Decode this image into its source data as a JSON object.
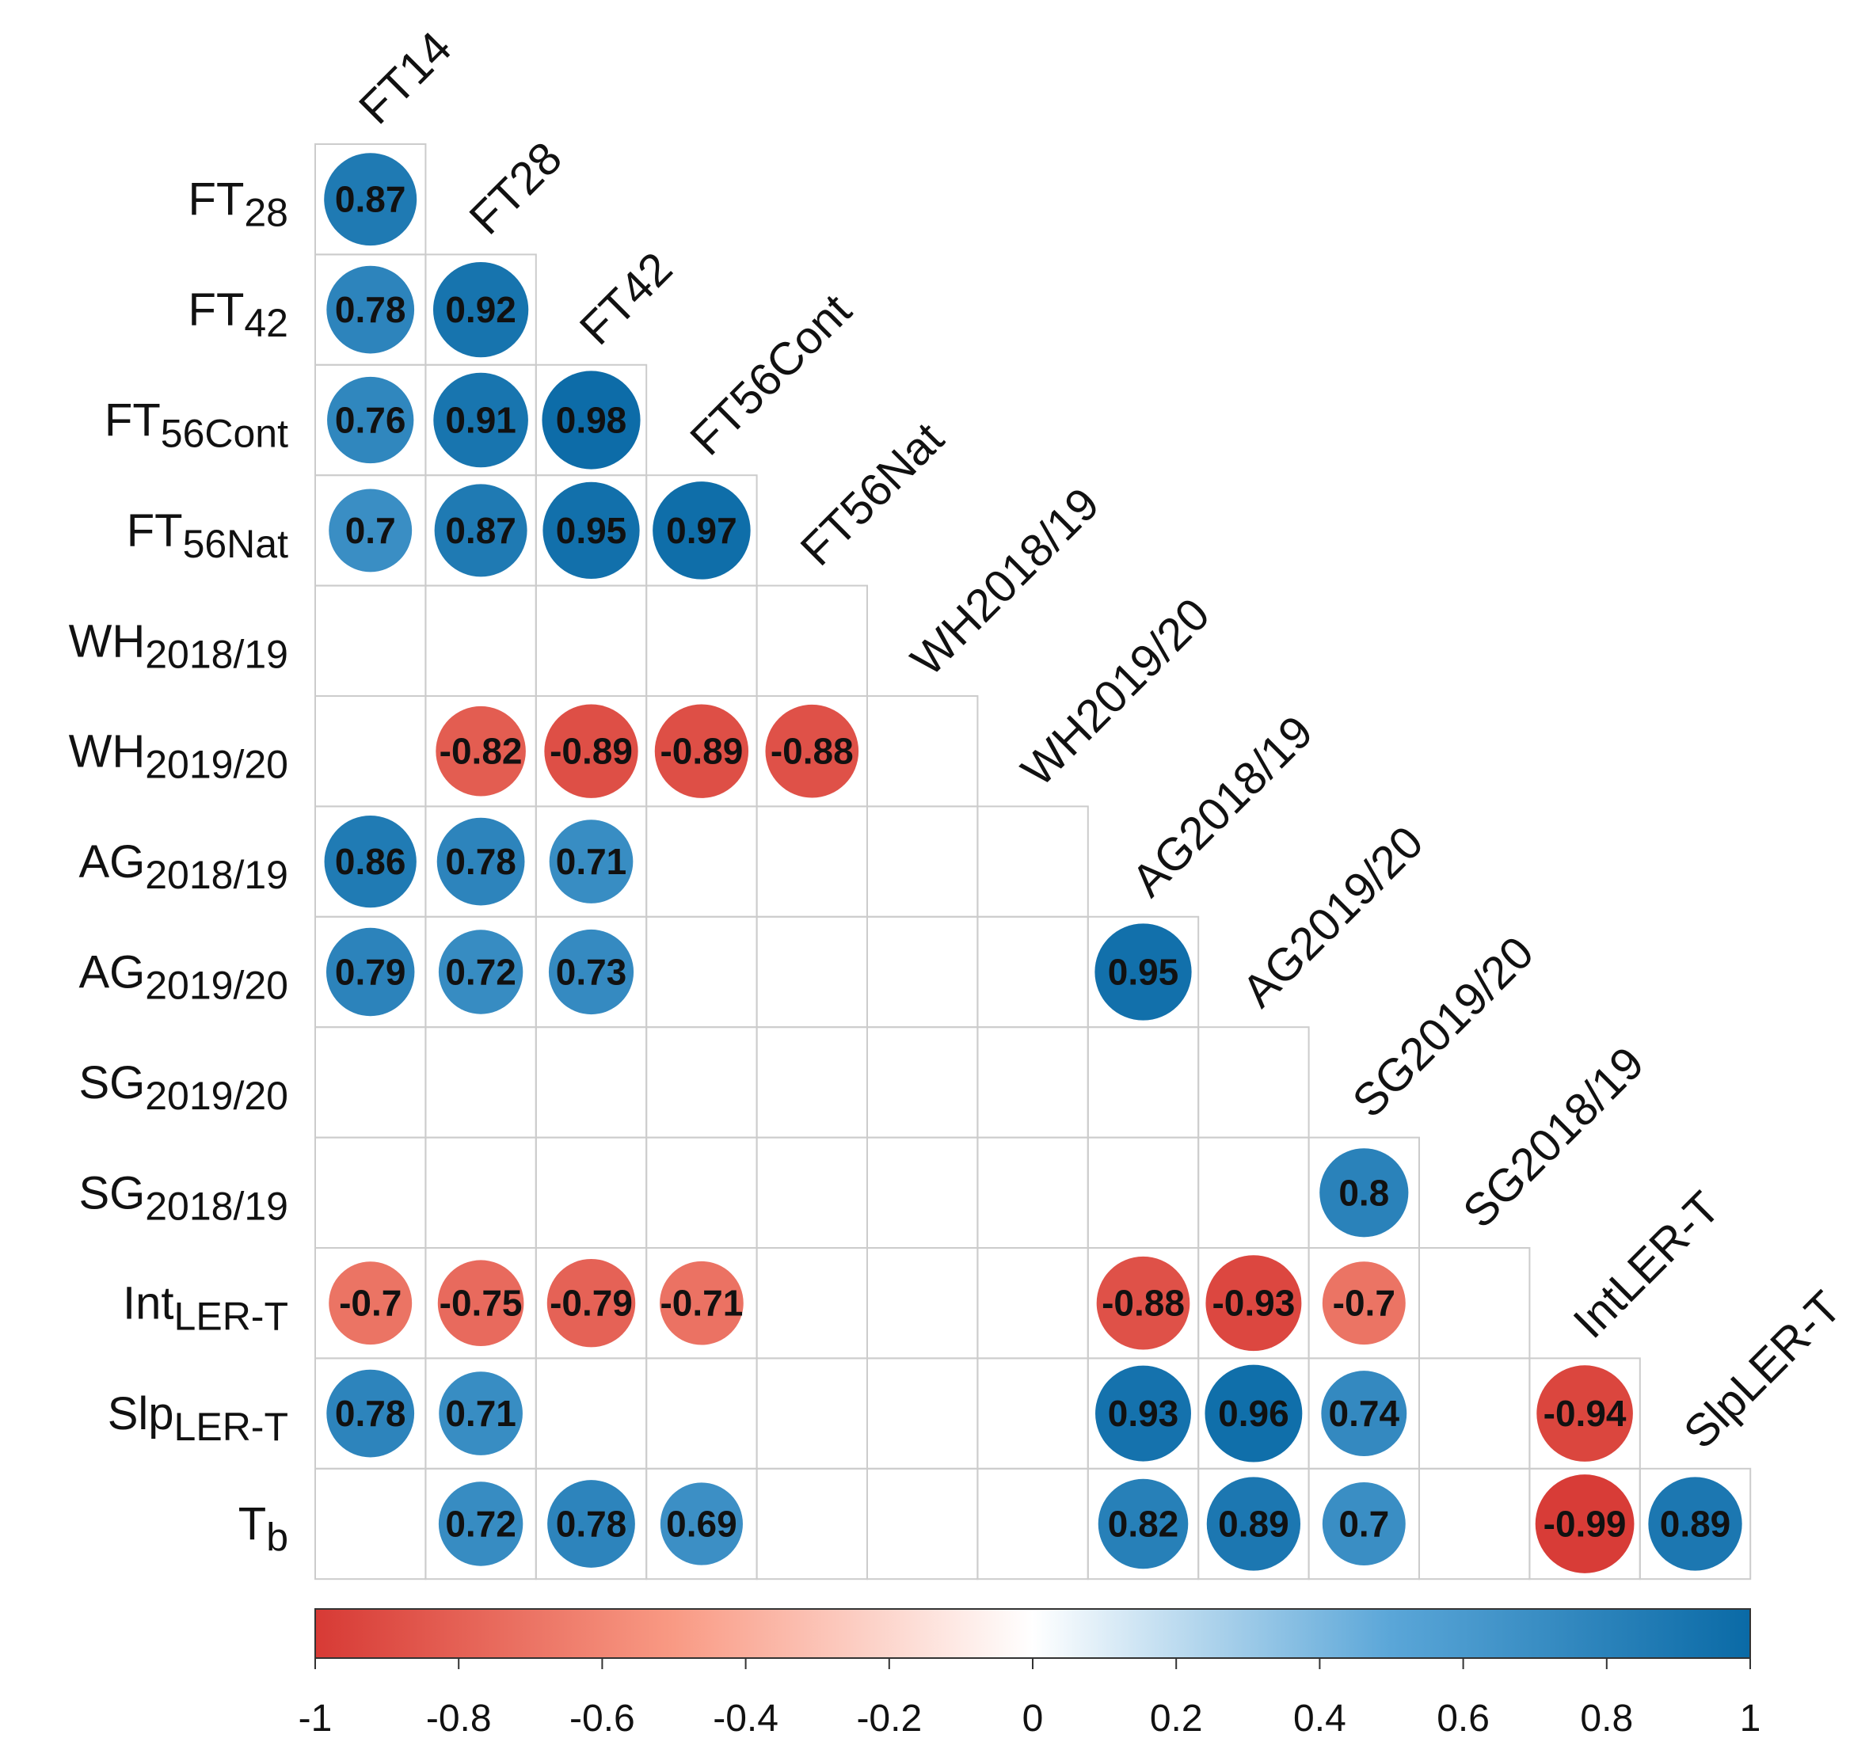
{
  "chart_data": {
    "type": "heatmap",
    "style": "lower-triangle correlation matrix with circles",
    "variables": [
      {
        "id": "FT14",
        "col_label": "FT14"
      },
      {
        "id": "FT28",
        "row_main": "FT",
        "row_sub": "28",
        "col_label": "FT28"
      },
      {
        "id": "FT42",
        "row_main": "FT",
        "row_sub": "42",
        "col_label": "FT42"
      },
      {
        "id": "FT56Cont",
        "row_main": "FT",
        "row_sub": "56Cont",
        "col_label": "FT56Cont"
      },
      {
        "id": "FT56Nat",
        "row_main": "FT",
        "row_sub": "56Nat",
        "col_label": "FT56Nat"
      },
      {
        "id": "WH2018/19",
        "row_main": "WH",
        "row_sub": "2018/19",
        "col_label": "WH2018/19"
      },
      {
        "id": "WH2019/20",
        "row_main": "WH",
        "row_sub": "2019/20",
        "col_label": "WH2019/20"
      },
      {
        "id": "AG2018/19",
        "row_main": "AG",
        "row_sub": "2018/19",
        "col_label": "AG2018/19"
      },
      {
        "id": "AG2019/20",
        "row_main": "AG",
        "row_sub": "2019/20",
        "col_label": "AG2019/20"
      },
      {
        "id": "SG2019/20",
        "row_main": "SG",
        "row_sub": "2019/20",
        "col_label": "SG2019/20"
      },
      {
        "id": "SG2018/19",
        "row_main": "SG",
        "row_sub": "2018/19",
        "col_label": "SG2018/19"
      },
      {
        "id": "IntLER-T",
        "row_main": "Int",
        "row_sub": "LER-T",
        "col_label": "IntLER-T"
      },
      {
        "id": "SlpLER-T",
        "row_main": "Slp",
        "row_sub": "LER-T",
        "col_label": "SlpLER-T"
      },
      {
        "id": "Tb",
        "row_main": "T",
        "row_sub": "b"
      }
    ],
    "rows": [
      [
        0.87
      ],
      [
        0.78,
        0.92
      ],
      [
        0.76,
        0.91,
        0.98
      ],
      [
        0.7,
        0.87,
        0.95,
        0.97
      ],
      [
        null,
        null,
        null,
        null,
        null
      ],
      [
        null,
        -0.82,
        -0.89,
        -0.89,
        -0.88,
        null
      ],
      [
        0.86,
        0.78,
        0.71,
        null,
        null,
        null,
        null
      ],
      [
        0.79,
        0.72,
        0.73,
        null,
        null,
        null,
        null,
        0.95
      ],
      [
        null,
        null,
        null,
        null,
        null,
        null,
        null,
        null,
        null
      ],
      [
        null,
        null,
        null,
        null,
        null,
        null,
        null,
        null,
        null,
        0.8
      ],
      [
        -0.7,
        -0.75,
        -0.79,
        -0.71,
        null,
        null,
        null,
        -0.88,
        -0.93,
        -0.7,
        null
      ],
      [
        0.78,
        0.71,
        null,
        null,
        null,
        null,
        null,
        0.93,
        0.96,
        0.74,
        null,
        -0.94
      ],
      [
        null,
        0.72,
        0.78,
        0.69,
        null,
        null,
        null,
        0.82,
        0.89,
        0.7,
        null,
        -0.99,
        0.89
      ]
    ],
    "colorbar": {
      "min": -1,
      "max": 1,
      "ticks": [
        "-1",
        "-0.8",
        "-0.6",
        "-0.4",
        "-0.2",
        "0",
        "0.2",
        "0.4",
        "0.6",
        "0.8",
        "1"
      ],
      "colors": {
        "negative": "#d73027",
        "mid_negative": "#f4a582",
        "zero": "#ffffff",
        "mid_positive": "#4393c3",
        "positive": "#0a6aa6"
      }
    }
  }
}
